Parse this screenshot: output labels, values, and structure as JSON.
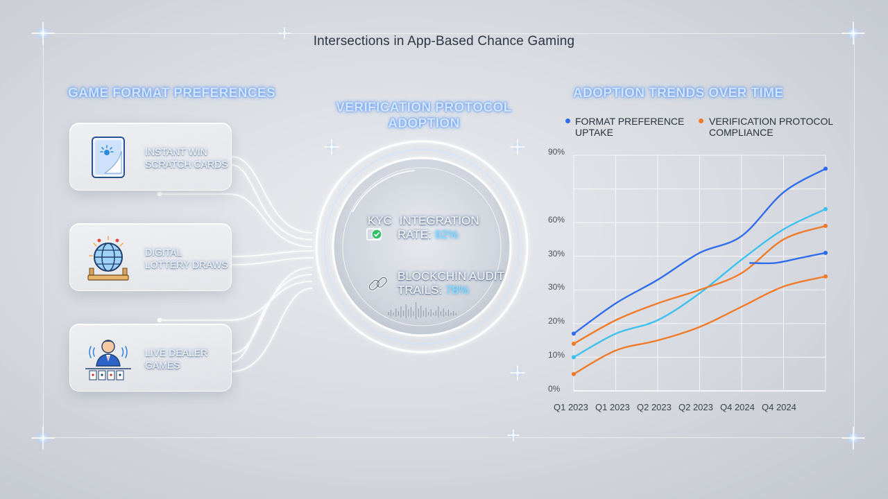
{
  "title": "Intersections in App-Based Chance Gaming",
  "left_panel": {
    "heading": "Game Format Preferences",
    "cards": [
      {
        "line1": "Instant Win",
        "line2": "Scratch Cards",
        "icon": "scratch-card-icon"
      },
      {
        "line1": "Digital",
        "line2": "Lottery Draws",
        "icon": "lottery-globe-icon"
      },
      {
        "line1": "Live Dealer",
        "line2": "Games",
        "icon": "live-dealer-icon"
      }
    ]
  },
  "center_panel": {
    "heading_line1": "Verification Protocol",
    "heading_line2": "Adoption",
    "metrics": [
      {
        "prefix": "KYC",
        "line1": "Integration",
        "line2_text": "Rate: ",
        "value": "92%",
        "icon": "kyc-check-icon"
      },
      {
        "prefix": "",
        "line1": "Blockchin Audit",
        "line2_text": "Trails: ",
        "value": "78%",
        "icon": "chain-link-icon"
      }
    ]
  },
  "right_panel": {
    "heading": "Adoption Trends Over Time",
    "legend": [
      {
        "line1": "Format Preference",
        "line2": "Uptake",
        "color": "#2f6bea"
      },
      {
        "line1": "Verification Protocol",
        "line2": "Compliance",
        "color": "#f07a2a"
      }
    ]
  },
  "colors": {
    "accent_blue": "#2f6bea",
    "light_blue": "#3cc0ee",
    "orange": "#f07a2a"
  },
  "chart_data": {
    "type": "line",
    "title": "Adoption Trends Over Time",
    "x_tick_labels": [
      "Q1 2023",
      "Q1 2023",
      "Q2 2023",
      "Q2 2023",
      "Q4 2024",
      "Q4 2024"
    ],
    "y_tick_labels": [
      "0%",
      "10%",
      "20%",
      "30%",
      "30%",
      "60%",
      "90%"
    ],
    "grid": true,
    "legend_position": "top",
    "series": [
      {
        "name": "Format Preference Uptake",
        "color": "#2f6bea",
        "points": [
          [
            0,
            1.7
          ],
          [
            1,
            2.6
          ],
          [
            2,
            3.3
          ],
          [
            3,
            4.1
          ],
          [
            4,
            4.6
          ],
          [
            5,
            5.9
          ],
          [
            6,
            6.6
          ]
        ]
      },
      {
        "name": "",
        "color": "#3cc0ee",
        "points": [
          [
            0,
            1.0
          ],
          [
            1,
            1.7
          ],
          [
            2,
            2.1
          ],
          [
            3,
            2.9
          ],
          [
            4,
            3.9
          ],
          [
            5,
            4.8
          ],
          [
            6,
            5.4
          ]
        ]
      },
      {
        "name": "Verification Protocol Compliance",
        "color": "#f07a2a",
        "points": [
          [
            0,
            1.4
          ],
          [
            1,
            2.1
          ],
          [
            2,
            2.6
          ],
          [
            3,
            3.0
          ],
          [
            4,
            3.5
          ],
          [
            5,
            4.5
          ],
          [
            6,
            4.9
          ]
        ]
      },
      {
        "name": "",
        "color": "#f07a2a",
        "points": [
          [
            0,
            0.5
          ],
          [
            1,
            1.2
          ],
          [
            2,
            1.5
          ],
          [
            3,
            1.9
          ],
          [
            4,
            2.5
          ],
          [
            5,
            3.1
          ],
          [
            6,
            3.4
          ]
        ]
      },
      {
        "name": "",
        "color": "#2f6bea",
        "points": [
          [
            4.2,
            3.8
          ],
          [
            4.8,
            3.8
          ],
          [
            5.4,
            3.95
          ],
          [
            6,
            4.1
          ]
        ]
      }
    ]
  }
}
